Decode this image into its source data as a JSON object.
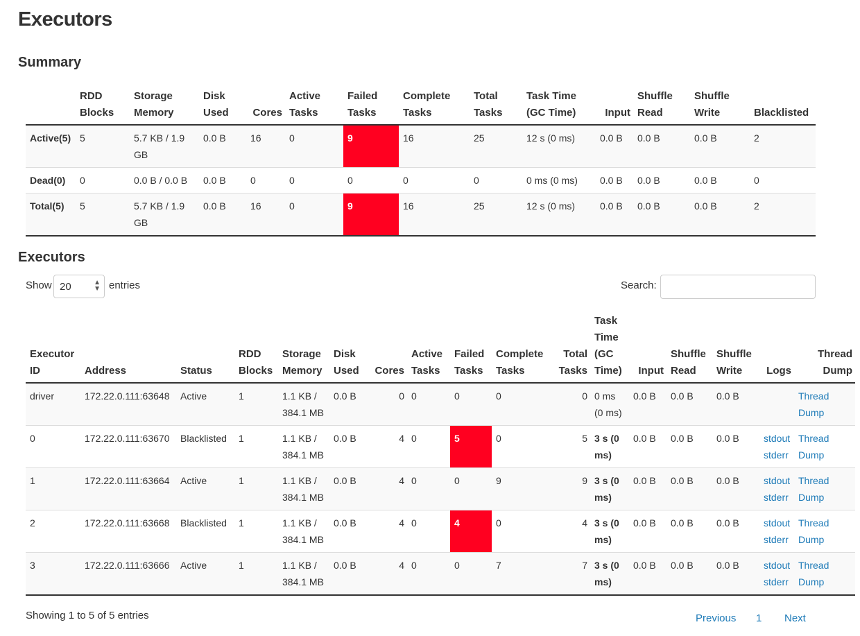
{
  "page": {
    "title": "Executors"
  },
  "summary": {
    "title": "Summary",
    "headers": [
      [
        "",
        ""
      ],
      [
        "RDD",
        "Blocks"
      ],
      [
        "Storage",
        "Memory"
      ],
      [
        "Disk",
        "Used"
      ],
      [
        "",
        "Cores"
      ],
      [
        "Active",
        "Tasks"
      ],
      [
        "Failed",
        "Tasks"
      ],
      [
        "Complete",
        "Tasks"
      ],
      [
        "Total",
        "Tasks"
      ],
      [
        "Task Time",
        "(GC Time)"
      ],
      [
        "",
        "Input"
      ],
      [
        "Shuffle",
        "Read"
      ],
      [
        "Shuffle",
        "Write"
      ],
      [
        "",
        "Blacklisted"
      ]
    ],
    "rows": [
      [
        "Active(5)",
        "5",
        "5.7 KB / 1.9 GB",
        "0.0 B",
        "16",
        "0",
        "9",
        "16",
        "25",
        "12 s (0 ms)",
        "0.0 B",
        "0.0 B",
        "0.0 B",
        "2"
      ],
      [
        "Dead(0)",
        "0",
        "0.0 B / 0.0 B",
        "0.0 B",
        "0",
        "0",
        "0",
        "0",
        "0",
        "0 ms (0 ms)",
        "0.0 B",
        "0.0 B",
        "0.0 B",
        "0"
      ],
      [
        "Total(5)",
        "5",
        "5.7 KB / 1.9 GB",
        "0.0 B",
        "16",
        "0",
        "9",
        "16",
        "25",
        "12 s (0 ms)",
        "0.0 B",
        "0.0 B",
        "0.0 B",
        "2"
      ]
    ]
  },
  "executors": {
    "title": "Executors",
    "show_label": "Show",
    "entries_value": "20",
    "entries_label": "entries",
    "search_label": "Search:",
    "search_value": "",
    "headers": [
      [
        "",
        "",
        "Executor",
        "ID"
      ],
      [
        "",
        "",
        "",
        "Address"
      ],
      [
        "",
        "",
        "",
        "Status"
      ],
      [
        "",
        "",
        "RDD",
        "Blocks"
      ],
      [
        "",
        "",
        "Storage",
        "Memory"
      ],
      [
        "",
        "",
        "Disk",
        "Used"
      ],
      [
        "",
        "",
        "",
        "Cores"
      ],
      [
        "",
        "",
        "Active",
        "Tasks"
      ],
      [
        "",
        "",
        "Failed",
        "Tasks"
      ],
      [
        "",
        "",
        "Complete",
        "Tasks"
      ],
      [
        "",
        "",
        "Total",
        "Tasks"
      ],
      [
        "Task",
        "Time",
        "(GC",
        "Time)"
      ],
      [
        "",
        "",
        "",
        "Input"
      ],
      [
        "",
        "",
        "Shuffle",
        "Read"
      ],
      [
        "",
        "",
        "Shuffle",
        "Write"
      ],
      [
        "",
        "",
        "",
        "Logs"
      ],
      [
        "",
        "",
        "Thread",
        "Dump"
      ]
    ],
    "rows": [
      {
        "id": "driver",
        "address": "172.22.0.111:63648",
        "status": "Active",
        "rdd": "1",
        "storage": "1.1 KB / 384.1 MB",
        "disk": "0.0 B",
        "cores": "0",
        "active": "0",
        "failed": "0",
        "complete": "0",
        "total": "0",
        "tasktime": "0 ms (0 ms)",
        "input": "0.0 B",
        "sread": "0.0 B",
        "swrite": "0.0 B",
        "stdout": "",
        "stderr": "",
        "thread": "Thread",
        "dump": "Dump"
      },
      {
        "id": "0",
        "address": "172.22.0.111:63670",
        "status": "Blacklisted",
        "rdd": "1",
        "storage": "1.1 KB / 384.1 MB",
        "disk": "0.0 B",
        "cores": "4",
        "active": "0",
        "failed": "5",
        "complete": "0",
        "total": "5",
        "tasktime": "3 s (0 ms)",
        "input": "0.0 B",
        "sread": "0.0 B",
        "swrite": "0.0 B",
        "stdout": "stdout",
        "stderr": "stderr",
        "thread": "Thread",
        "dump": "Dump"
      },
      {
        "id": "1",
        "address": "172.22.0.111:63664",
        "status": "Active",
        "rdd": "1",
        "storage": "1.1 KB / 384.1 MB",
        "disk": "0.0 B",
        "cores": "4",
        "active": "0",
        "failed": "0",
        "complete": "9",
        "total": "9",
        "tasktime": "3 s (0 ms)",
        "input": "0.0 B",
        "sread": "0.0 B",
        "swrite": "0.0 B",
        "stdout": "stdout",
        "stderr": "stderr",
        "thread": "Thread",
        "dump": "Dump"
      },
      {
        "id": "2",
        "address": "172.22.0.111:63668",
        "status": "Blacklisted",
        "rdd": "1",
        "storage": "1.1 KB / 384.1 MB",
        "disk": "0.0 B",
        "cores": "4",
        "active": "0",
        "failed": "4",
        "complete": "0",
        "total": "4",
        "tasktime": "3 s (0 ms)",
        "input": "0.0 B",
        "sread": "0.0 B",
        "swrite": "0.0 B",
        "stdout": "stdout",
        "stderr": "stderr",
        "thread": "Thread",
        "dump": "Dump"
      },
      {
        "id": "3",
        "address": "172.22.0.111:63666",
        "status": "Active",
        "rdd": "1",
        "storage": "1.1 KB / 384.1 MB",
        "disk": "0.0 B",
        "cores": "4",
        "active": "0",
        "failed": "0",
        "complete": "7",
        "total": "7",
        "tasktime": "3 s (0 ms)",
        "input": "0.0 B",
        "sread": "0.0 B",
        "swrite": "0.0 B",
        "stdout": "stdout",
        "stderr": "stderr",
        "thread": "Thread",
        "dump": "Dump"
      }
    ],
    "info": "Showing 1 to 5 of 5 entries",
    "pagination": {
      "previous": "Previous",
      "page": "1",
      "next": "Next"
    }
  },
  "colors": {
    "failed_highlight": "#ff0020",
    "link": "#1e7bb8"
  }
}
